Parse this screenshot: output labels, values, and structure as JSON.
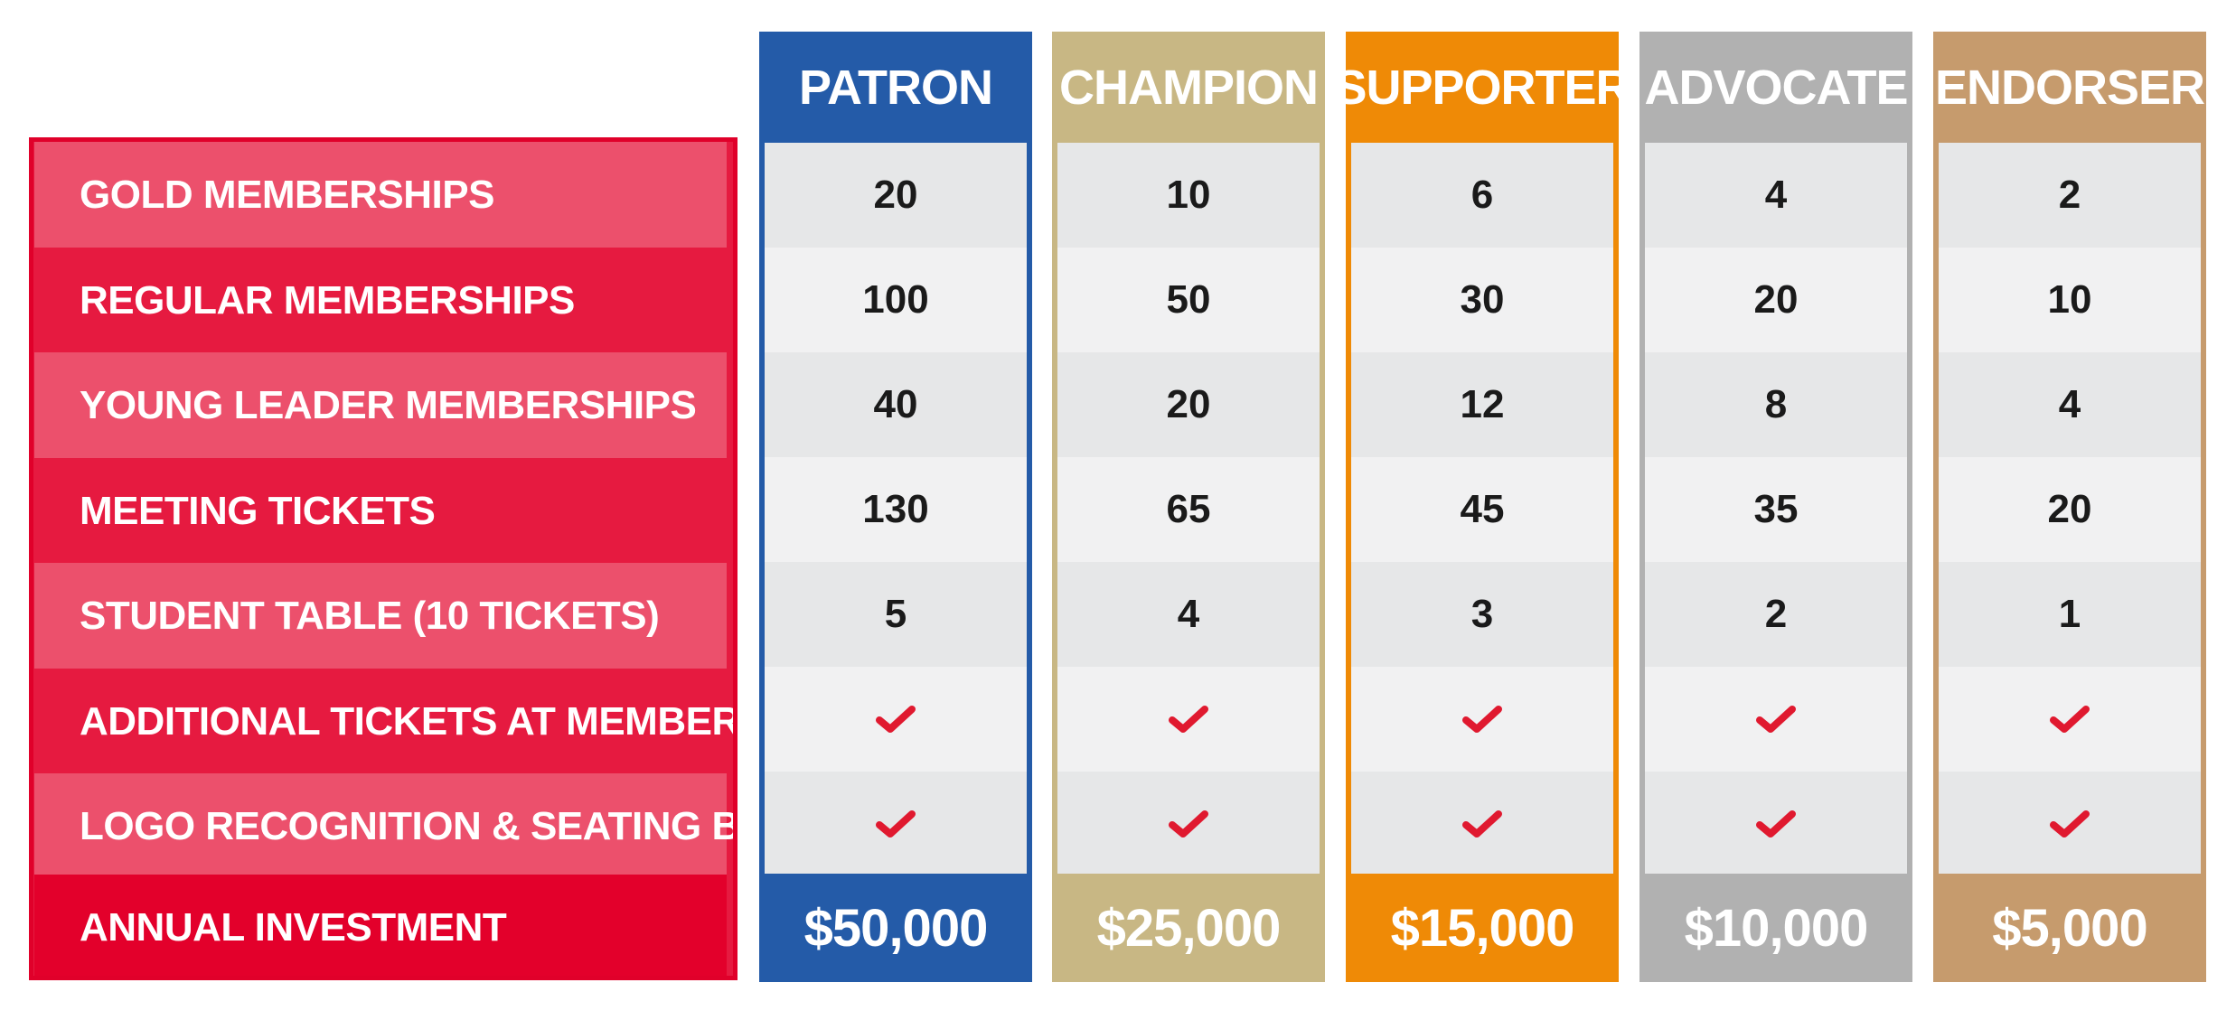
{
  "row_labels": [
    "GOLD MEMBERSHIPS",
    "REGULAR MEMBERSHIPS",
    "YOUNG LEADER MEMBERSHIPS",
    "MEETING TICKETS",
    "STUDENT TABLE (10 TICKETS)",
    "ADDITIONAL TICKETS AT MEMBER RATE",
    "LOGO RECOGNITION & SEATING BENEFITS",
    "ANNUAL INVESTMENT"
  ],
  "check_icon": "check-icon",
  "colors": {
    "label_dark": "#e61a40",
    "label_light": "#ec506c",
    "check": "#e0192f",
    "cell_shade": "#e6e7e8",
    "cell_plain": "#f1f1f2"
  },
  "tiers": [
    {
      "name": "PATRON",
      "color": "#245ba8",
      "values": [
        "20",
        "100",
        "40",
        "130",
        "5"
      ],
      "investment": "$50,000"
    },
    {
      "name": "CHAMPION",
      "color": "#c8b784",
      "values": [
        "10",
        "50",
        "20",
        "65",
        "4"
      ],
      "investment": "$25,000"
    },
    {
      "name": "SUPPORTER",
      "color": "#ef8a06",
      "values": [
        "6",
        "30",
        "12",
        "45",
        "3"
      ],
      "investment": "$15,000"
    },
    {
      "name": "ADVOCATE",
      "color": "#b1b1b1",
      "values": [
        "4",
        "20",
        "8",
        "35",
        "2"
      ],
      "investment": "$10,000"
    },
    {
      "name": "ENDORSER",
      "color": "#c69b6d",
      "values": [
        "2",
        "10",
        "4",
        "20",
        "1"
      ],
      "investment": "$5,000"
    }
  ]
}
